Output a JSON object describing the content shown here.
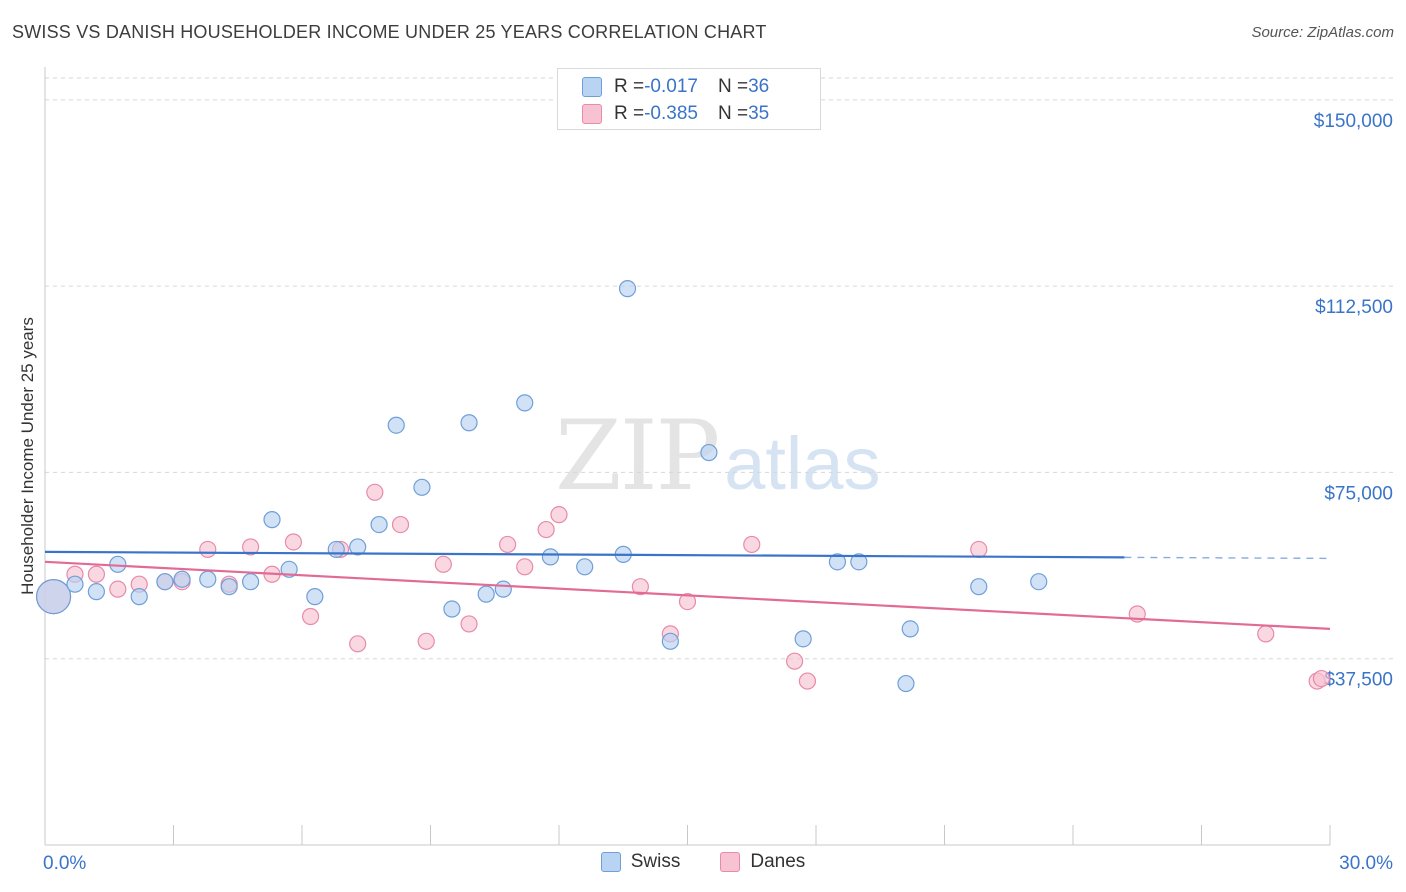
{
  "title": "SWISS VS DANISH HOUSEHOLDER INCOME UNDER 25 YEARS CORRELATION CHART",
  "source": "Source: ZipAtlas.com",
  "watermark": {
    "zip": "ZIP",
    "atlas": "atlas"
  },
  "colors": {
    "swiss_fill": "#b9d3f3",
    "swiss_stroke": "#6f9fd8",
    "swiss_line": "#3a74c9",
    "danes_fill": "#f7c3d3",
    "danes_stroke": "#e88aa9",
    "danes_line": "#e26b95",
    "tick_label": "#3a74c9",
    "grid": "#d6d6d6"
  },
  "legend": {
    "swiss": {
      "r_label": "R = ",
      "r_value": "-0.017",
      "n_label": "N = ",
      "n_value": "36"
    },
    "danes": {
      "r_label": "R = ",
      "r_value": "-0.385",
      "n_label": "N = ",
      "n_value": "35"
    }
  },
  "chart_data": {
    "type": "scatter",
    "title": "SWISS VS DANISH HOUSEHOLDER INCOME UNDER 25 YEARS CORRELATION CHART",
    "xlabel": "",
    "ylabel": "Householder Income Under 25 years",
    "xlim": [
      0,
      30
    ],
    "ylim": [
      0,
      155000
    ],
    "x_tick_labels": [
      "0.0%",
      "30.0%"
    ],
    "y_ticks": [
      37500,
      75000,
      112500,
      150000
    ],
    "y_tick_labels": [
      "$37,500",
      "$75,000",
      "$112,500",
      "$150,000"
    ],
    "grid": "horizontal dashed",
    "legend_position": "top-center and bottom",
    "series": [
      {
        "name": "Swiss",
        "points": [
          [
            0.2,
            50000
          ],
          [
            0.7,
            52500
          ],
          [
            1.2,
            51000
          ],
          [
            1.7,
            56500
          ],
          [
            2.2,
            50000
          ],
          [
            2.8,
            53000
          ],
          [
            3.2,
            53500
          ],
          [
            3.8,
            53500
          ],
          [
            4.3,
            52000
          ],
          [
            4.8,
            53000
          ],
          [
            5.3,
            65500
          ],
          [
            5.7,
            55500
          ],
          [
            6.3,
            50000
          ],
          [
            6.8,
            59500
          ],
          [
            7.3,
            60000
          ],
          [
            7.8,
            64500
          ],
          [
            8.2,
            84500
          ],
          [
            8.8,
            72000
          ],
          [
            9.5,
            47500
          ],
          [
            9.9,
            85000
          ],
          [
            10.3,
            50500
          ],
          [
            10.7,
            51500
          ],
          [
            11.2,
            89000
          ],
          [
            11.8,
            58000
          ],
          [
            12.6,
            56000
          ],
          [
            13.5,
            58500
          ],
          [
            13.6,
            112000
          ],
          [
            14.6,
            41000
          ],
          [
            15.5,
            79000
          ],
          [
            17.7,
            41500
          ],
          [
            18.5,
            57000
          ],
          [
            19.0,
            57000
          ],
          [
            20.1,
            32500
          ],
          [
            20.2,
            43500
          ],
          [
            21.8,
            52000
          ],
          [
            23.2,
            53000
          ]
        ],
        "trend": {
          "x": [
            0,
            25.2
          ],
          "y": [
            59000,
            57900
          ],
          "dashed_to_x": 30
        }
      },
      {
        "name": "Danes",
        "points": [
          [
            0.2,
            50000
          ],
          [
            0.7,
            54500
          ],
          [
            1.2,
            54500
          ],
          [
            1.7,
            51500
          ],
          [
            2.2,
            52500
          ],
          [
            2.8,
            53000
          ],
          [
            3.2,
            53000
          ],
          [
            3.8,
            59500
          ],
          [
            4.3,
            52500
          ],
          [
            4.8,
            60000
          ],
          [
            5.3,
            54500
          ],
          [
            5.8,
            61000
          ],
          [
            6.2,
            46000
          ],
          [
            6.9,
            59500
          ],
          [
            7.3,
            40500
          ],
          [
            7.7,
            71000
          ],
          [
            8.3,
            64500
          ],
          [
            8.9,
            41000
          ],
          [
            9.3,
            56500
          ],
          [
            9.9,
            44500
          ],
          [
            10.8,
            60500
          ],
          [
            11.2,
            56000
          ],
          [
            11.7,
            63500
          ],
          [
            12.0,
            66500
          ],
          [
            13.9,
            52000
          ],
          [
            14.6,
            42500
          ],
          [
            15.0,
            49000
          ],
          [
            16.5,
            60500
          ],
          [
            17.5,
            37000
          ],
          [
            17.8,
            33000
          ],
          [
            21.8,
            59500
          ],
          [
            25.5,
            46500
          ],
          [
            28.5,
            42500
          ],
          [
            29.7,
            33000
          ],
          [
            29.8,
            33500
          ]
        ],
        "trend": {
          "x": [
            0,
            30
          ],
          "y": [
            57000,
            43500
          ]
        }
      }
    ]
  }
}
